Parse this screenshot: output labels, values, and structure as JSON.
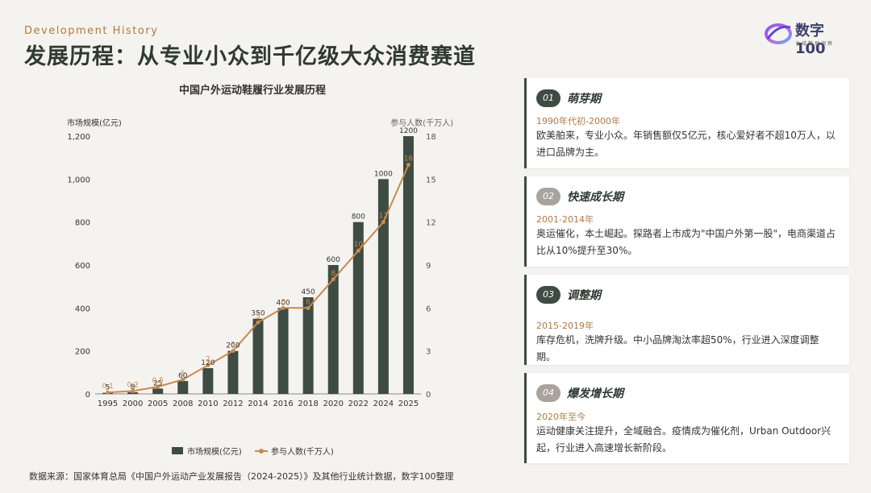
{
  "header": {
    "subtitle_en": "Development History",
    "title": "发展历程：从专业小众到千亿级大众消费赛道"
  },
  "logo": {
    "text": "数字100",
    "sub": "全域数据洞察"
  },
  "chart_data": {
    "type": "bar",
    "title": "中国户外运动鞋履行业发展历程",
    "categories": [
      "1995",
      "2000",
      "2005",
      "2008",
      "2010",
      "2012",
      "2014",
      "2016",
      "2018",
      "2020",
      "2022",
      "2024",
      "2025"
    ],
    "ylabel_left": "市场规模(亿元)",
    "ylabel_right": "参与人数(千万人)",
    "ylim_left": [
      0,
      1200
    ],
    "ylim_right": [
      0,
      18
    ],
    "left_ticks": [
      "0",
      "200",
      "400",
      "600",
      "800",
      "1,000",
      "1,200"
    ],
    "right_ticks": [
      "0",
      "3",
      "6",
      "9",
      "12",
      "15",
      "18"
    ],
    "grid": false,
    "legend_position": "bottom",
    "series": [
      {
        "name": "市场规模(亿元)",
        "type": "bar",
        "axis": "left",
        "color": "#3e4c43",
        "values": [
          5,
          8,
          25,
          60,
          120,
          200,
          350,
          400,
          450,
          600,
          800,
          1000,
          1200
        ],
        "labels": [
          "5",
          "8",
          "25",
          "60",
          "120",
          "200",
          "350",
          "400",
          "450",
          "600",
          "800",
          "1000",
          "1200"
        ]
      },
      {
        "name": "参与人数(千万人)",
        "type": "line",
        "axis": "right",
        "color": "#c98a4d",
        "values": [
          0.1,
          0.2,
          0.5,
          1,
          2,
          3,
          5,
          6,
          6,
          8,
          10,
          12,
          16
        ],
        "labels": [
          "0.1",
          "0.2",
          "0.5",
          "1",
          "2",
          "3",
          "5",
          "6",
          "6",
          "8",
          "10",
          "12",
          "16"
        ]
      }
    ]
  },
  "source": "数据来源：国家体育总局《中国户外运动产业发展报告（2024-2025）》及其他行业统计数据，数字100整理",
  "phases": [
    {
      "num": "01",
      "title": "萌芽期",
      "period": "1990年代初-2000年",
      "desc": "欧美舶来，专业小众。年销售额仅5亿元，核心爱好者不超10万人，以进口品牌为主。"
    },
    {
      "num": "02",
      "title": "快速成长期",
      "period": "2001-2014年",
      "desc": "奥运催化，本土崛起。探路者上市成为\"中国户外第一股\"，电商渠道占比从10%提升至30%。"
    },
    {
      "num": "03",
      "title": "调整期",
      "period": "2015-2019年",
      "desc": "库存危机，洗牌升级。中小品牌淘汰率超50%，行业进入深度调整期。"
    },
    {
      "num": "04",
      "title": "爆发增长期",
      "period": "2020年至今",
      "desc": "运动健康关注提升，全域融合。疫情成为催化剂，Urban Outdoor兴起，行业进入高速增长新阶段。"
    }
  ]
}
